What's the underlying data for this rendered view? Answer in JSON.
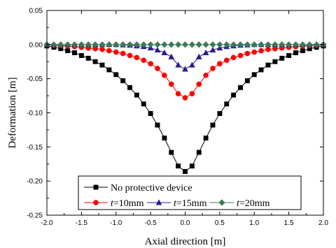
{
  "chart_data": {
    "type": "line",
    "xlabel": "Axial direction [m]",
    "ylabel": "Deformation [m]",
    "xlim": [
      -2.0,
      2.0
    ],
    "ylim": [
      -0.25,
      0.05
    ],
    "xticks": [
      "-2.0",
      "-1.5",
      "-1.0",
      "-0.5",
      "0.0",
      "0.5",
      "1.0",
      "1.5",
      "2.0"
    ],
    "yticks": [
      "0.05",
      "0.00",
      "-0.05",
      "-0.10",
      "-0.15",
      "-0.20",
      "-0.25"
    ],
    "legend_position": "bottom-center",
    "x": [
      -2.0,
      -1.9,
      -1.8,
      -1.7,
      -1.6,
      -1.5,
      -1.4,
      -1.3,
      -1.2,
      -1.1,
      -1.0,
      -0.9,
      -0.8,
      -0.7,
      -0.6,
      -0.5,
      -0.4,
      -0.3,
      -0.2,
      -0.1,
      0.0,
      0.1,
      0.2,
      0.3,
      0.4,
      0.5,
      0.6,
      0.7,
      0.8,
      0.9,
      1.0,
      1.1,
      1.2,
      1.3,
      1.4,
      1.5,
      1.6,
      1.7,
      1.8,
      1.9,
      2.0
    ],
    "series": [
      {
        "name": "No protective device",
        "label_prefix": "",
        "label_suffix": "No protective device",
        "color": "#000000",
        "marker": "square",
        "values": [
          -0.002,
          -0.004,
          -0.006,
          -0.009,
          -0.012,
          -0.016,
          -0.02,
          -0.025,
          -0.03,
          -0.037,
          -0.044,
          -0.053,
          -0.063,
          -0.074,
          -0.087,
          -0.101,
          -0.118,
          -0.137,
          -0.158,
          -0.178,
          -0.186,
          -0.178,
          -0.158,
          -0.137,
          -0.118,
          -0.101,
          -0.087,
          -0.074,
          -0.063,
          -0.053,
          -0.044,
          -0.037,
          -0.03,
          -0.025,
          -0.02,
          -0.016,
          -0.012,
          -0.009,
          -0.006,
          -0.004,
          -0.002
        ]
      },
      {
        "name": "t=10mm",
        "label_prefix": "t",
        "label_suffix": "=10mm",
        "color": "#ff0000",
        "marker": "circle",
        "values": [
          -0.0005,
          -0.001,
          -0.0015,
          -0.002,
          -0.003,
          -0.004,
          -0.005,
          -0.006,
          -0.007,
          -0.009,
          -0.011,
          -0.013,
          -0.016,
          -0.019,
          -0.023,
          -0.028,
          -0.035,
          -0.045,
          -0.058,
          -0.072,
          -0.078,
          -0.072,
          -0.058,
          -0.045,
          -0.035,
          -0.028,
          -0.023,
          -0.019,
          -0.016,
          -0.013,
          -0.011,
          -0.009,
          -0.007,
          -0.006,
          -0.005,
          -0.004,
          -0.003,
          -0.002,
          -0.0015,
          -0.001,
          -0.0005
        ]
      },
      {
        "name": "t=15mm",
        "label_prefix": "t",
        "label_suffix": "=15mm",
        "color": "#2b1a8c",
        "marker": "triangle",
        "values": [
          0,
          0,
          0,
          0,
          0,
          0,
          0,
          0,
          0,
          0,
          0,
          -0.0005,
          -0.001,
          -0.002,
          -0.003,
          -0.005,
          -0.008,
          -0.012,
          -0.018,
          -0.03,
          -0.036,
          -0.03,
          -0.018,
          -0.012,
          -0.008,
          -0.005,
          -0.003,
          -0.002,
          -0.001,
          -0.0005,
          0,
          0,
          0,
          0,
          0,
          0,
          0,
          0,
          0,
          0,
          0
        ]
      },
      {
        "name": "t=20mm",
        "label_prefix": "t",
        "label_suffix": "=20mm",
        "color": "#3a7a55",
        "marker": "diamond",
        "values": [
          0,
          0,
          0,
          0,
          0,
          0,
          0,
          0,
          0,
          0,
          0,
          0,
          0,
          0,
          0,
          0,
          0,
          0,
          0,
          0,
          0,
          0,
          0,
          0,
          0,
          0,
          0,
          0,
          0,
          0,
          0,
          0,
          0,
          0,
          0,
          0,
          0,
          0,
          0,
          0,
          0
        ]
      }
    ]
  }
}
